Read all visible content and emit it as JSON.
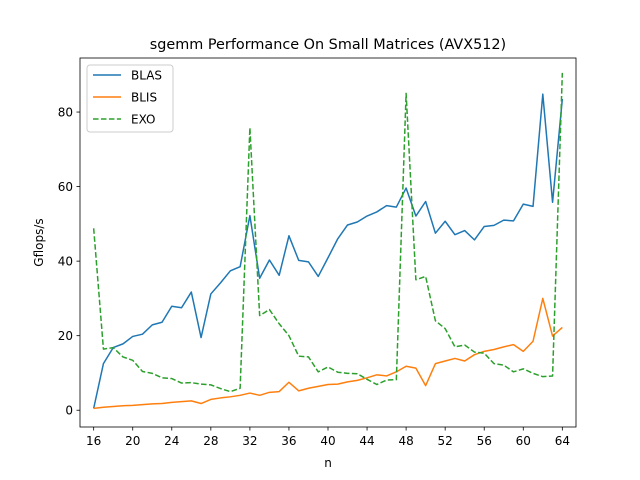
{
  "chart_data": {
    "type": "line",
    "title": "sgemm Performance On Small Matrices (AVX512)",
    "xlabel": "n",
    "ylabel": "Gflops/s",
    "xlim": [
      14.6,
      65.4
    ],
    "ylim": [
      -4.5,
      94.5
    ],
    "xticks": [
      16,
      20,
      24,
      28,
      32,
      36,
      40,
      44,
      48,
      52,
      56,
      60,
      64
    ],
    "yticks": [
      0,
      20,
      40,
      60,
      80
    ],
    "grid": false,
    "legend_position": "top-left",
    "x": [
      16,
      17,
      18,
      19,
      20,
      21,
      22,
      23,
      24,
      25,
      26,
      27,
      28,
      29,
      30,
      31,
      32,
      33,
      34,
      35,
      36,
      37,
      38,
      39,
      40,
      41,
      42,
      43,
      44,
      45,
      46,
      47,
      48,
      49,
      50,
      51,
      52,
      53,
      54,
      55,
      56,
      57,
      58,
      59,
      60,
      61,
      62,
      63,
      64
    ],
    "series": [
      {
        "name": "BLAS",
        "color": "#1f77b4",
        "dash": "solid",
        "values": [
          0.5,
          12.5,
          16.8,
          17.8,
          19.8,
          20.4,
          22.9,
          23.6,
          27.9,
          27.5,
          31.7,
          19.5,
          31.2,
          34.2,
          37.4,
          38.5,
          52.2,
          35.4,
          40.3,
          36.2,
          46.8,
          40.2,
          39.8,
          35.9,
          40.9,
          46.0,
          49.7,
          50.5,
          52.1,
          53.2,
          54.9,
          54.5,
          59.6,
          52.1,
          56.0,
          47.5,
          50.7,
          47.1,
          48.2,
          45.7,
          49.3,
          49.6,
          51.0,
          50.8,
          55.3,
          54.7,
          84.8,
          55.8,
          83.5
        ]
      },
      {
        "name": "BLIS",
        "color": "#ff7f0e",
        "dash": "solid",
        "values": [
          0.5,
          0.8,
          1.0,
          1.2,
          1.3,
          1.5,
          1.7,
          1.8,
          2.1,
          2.3,
          2.5,
          1.8,
          2.9,
          3.3,
          3.6,
          4.0,
          4.6,
          4.0,
          4.8,
          5.0,
          7.5,
          5.2,
          5.9,
          6.4,
          6.9,
          7.0,
          7.6,
          8.0,
          8.7,
          9.5,
          9.2,
          10.3,
          11.8,
          11.3,
          6.6,
          12.5,
          13.2,
          13.9,
          13.2,
          14.9,
          15.8,
          16.3,
          17.0,
          17.6,
          15.8,
          18.5,
          30.0,
          19.9,
          22.2
        ]
      },
      {
        "name": "EXO",
        "color": "#2ca02c",
        "dash": "dashed",
        "values": [
          48.8,
          16.4,
          16.8,
          14.3,
          13.4,
          10.4,
          9.9,
          8.7,
          8.5,
          7.3,
          7.4,
          7.0,
          6.8,
          5.8,
          5.0,
          5.9,
          75.8,
          25.4,
          27.0,
          23.2,
          20.0,
          14.5,
          14.3,
          10.3,
          11.6,
          10.2,
          9.9,
          9.8,
          8.3,
          6.9,
          8.1,
          8.2,
          85.0,
          35.0,
          35.9,
          24.0,
          21.9,
          17.0,
          17.5,
          15.6,
          15.3,
          12.5,
          12.1,
          10.3,
          11.1,
          9.9,
          9.0,
          9.2,
          90.5
        ]
      }
    ]
  }
}
